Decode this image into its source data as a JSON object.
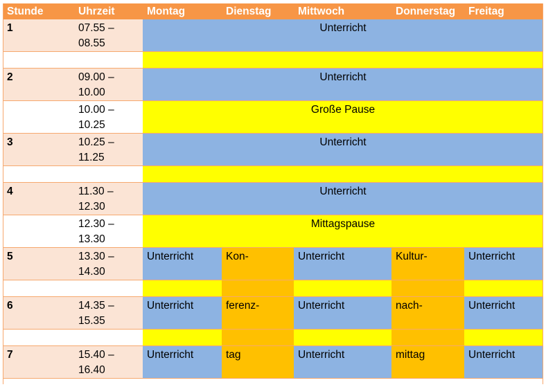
{
  "colors": {
    "header": "#f79646",
    "cell_light": "#fbe4d5",
    "grid_line": "#f6a86e",
    "lesson": "#8db3e2",
    "break": "#ffff00",
    "conference": "#ffc000",
    "white": "#ffffff"
  },
  "header": [
    "Stunde",
    "Uhrzeit",
    "Montag",
    "Dienstag",
    "Mittwoch",
    "Donnerstag",
    "Freitag"
  ],
  "rows": [
    {
      "period": "1",
      "time": "07.55 –\n08.55",
      "kind": "span-lesson",
      "text": "Unterricht"
    },
    {
      "period": "",
      "time": "",
      "kind": "span-break",
      "text": ""
    },
    {
      "period": "2",
      "time": "09.00 –\n10.00",
      "kind": "span-lesson",
      "text": "Unterricht"
    },
    {
      "period": "",
      "time": "10.00 –\n10.25",
      "kind": "span-break",
      "text": "Große Pause"
    },
    {
      "period": "3",
      "time": "10.25 –\n11.25",
      "kind": "span-lesson",
      "text": "Unterricht"
    },
    {
      "period": "",
      "time": "",
      "kind": "span-break",
      "text": ""
    },
    {
      "period": "4",
      "time": "11.30 –\n12.30",
      "kind": "span-lesson",
      "text": "Unterricht"
    },
    {
      "period": "",
      "time": "12.30 –\n13.30",
      "kind": "span-break",
      "text": "Mittagspause"
    },
    {
      "period": "5",
      "time": "13.30 –\n14.30",
      "kind": "days",
      "days": [
        "Unterricht",
        "Kon-",
        "Unterricht",
        "Kultur-",
        "Unterricht"
      ]
    },
    {
      "period": "",
      "time": "",
      "kind": "days-break",
      "days": [
        "",
        "",
        "",
        "",
        ""
      ]
    },
    {
      "period": "6",
      "time": "14.35 –\n15.35",
      "kind": "days",
      "days": [
        "Unterricht",
        "ferenz-",
        "Unterricht",
        "nach-",
        "Unterricht"
      ]
    },
    {
      "period": "",
      "time": "",
      "kind": "days-break",
      "days": [
        "",
        "",
        "",
        "",
        ""
      ]
    },
    {
      "period": "7",
      "time": "15.40 –\n16.40",
      "kind": "days",
      "days": [
        "Unterricht",
        "tag",
        "Unterricht",
        "mittag",
        "Unterricht"
      ]
    }
  ]
}
